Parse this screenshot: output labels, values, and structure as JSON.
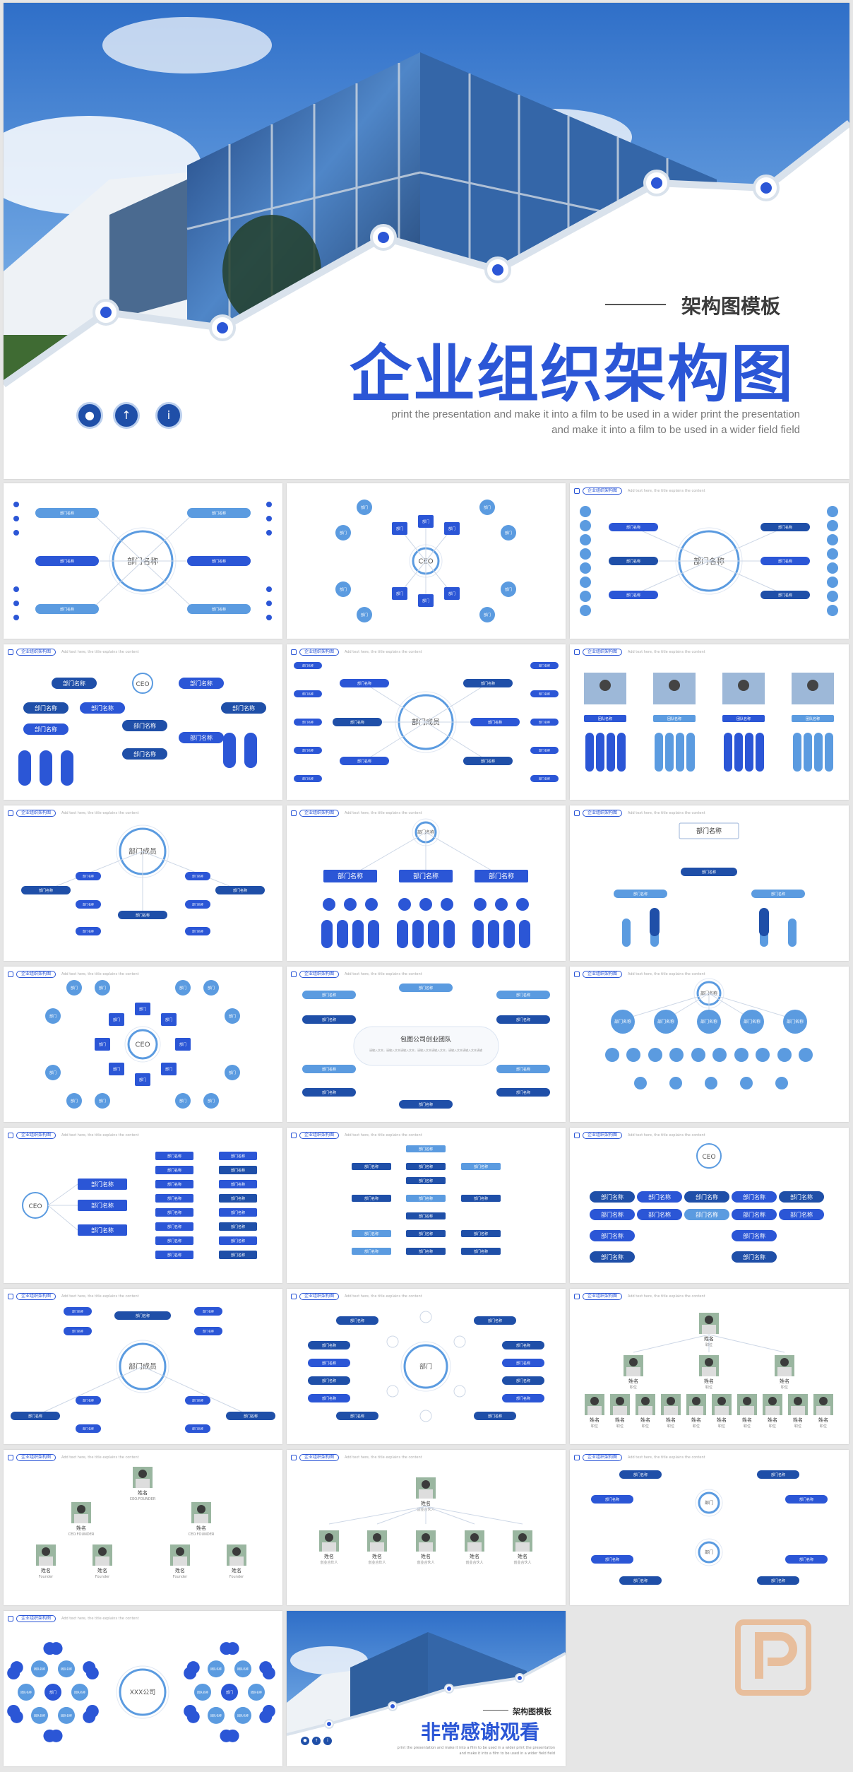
{
  "cover": {
    "subtitle": "架构图模板",
    "title": "企业组织架构图",
    "description_line1": "print the presentation and make it into a film to be used in a wider print the presentation",
    "description_line2": "and make it into a film to be used in a wider field field",
    "icons": [
      "user-icon",
      "upload-icon",
      "info-icon"
    ]
  },
  "slide_header": {
    "tag": "企业组织架构图",
    "desc": "Add text here, the title explains the content"
  },
  "labels": {
    "dept": "部门名称",
    "ceo": "CEO",
    "member": "部门成员",
    "dept_short": "部门",
    "name_short": "名称",
    "team": "团队名称",
    "company": "XXX公司",
    "person": "姓名",
    "role": "职位",
    "founder": "CEO.FOUNDER",
    "founder2": "Founder",
    "entrepreneur": "创业合伙人",
    "mini": "部门名称",
    "startup_title": "包图公司创业团队",
    "startup_text": "请输入文本，请输入文本请输入文本，请输入文本请输入文本，请输入文本请输入文本请输入文本，请输入文本请输入文本，请输入文本"
  },
  "ending": {
    "subtitle": "架构图模板",
    "title": "非常感谢观看",
    "desc": "print the presentation and make it into a film to be used in a wider print the presentation and make it into a film to be used in a wider field field"
  },
  "colors": {
    "primary": "#2b56d6",
    "dark": "#1f4fa8",
    "light": "#5b9be0",
    "pale": "#bcd0ee"
  }
}
